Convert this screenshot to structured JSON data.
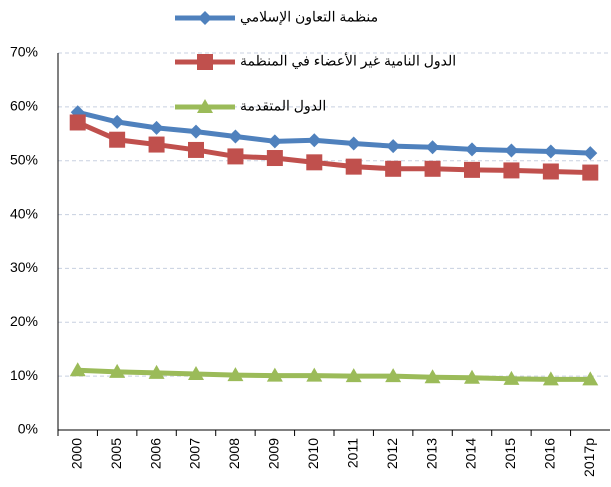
{
  "chart_data": {
    "type": "line",
    "categories": [
      "2000",
      "2005",
      "2006",
      "2007",
      "2008",
      "2009",
      "2010",
      "2011",
      "2012",
      "2013",
      "2014",
      "2015",
      "2016",
      "2017p"
    ],
    "series": [
      {
        "name": "منظمة التعاون الإسلامي",
        "color": "#4f81bd",
        "marker": "diamond",
        "values": [
          59,
          57.2,
          56.1,
          55.4,
          54.5,
          53.6,
          53.8,
          53.2,
          52.7,
          52.5,
          52.1,
          51.9,
          51.7,
          51.4
        ]
      },
      {
        "name": "الدول النامية غير الأعضاء في المنظمة",
        "color": "#c0504d",
        "marker": "square",
        "values": [
          57.1,
          53.9,
          53,
          52,
          50.8,
          50.5,
          49.7,
          48.9,
          48.5,
          48.5,
          48.3,
          48.2,
          48,
          47.8
        ]
      },
      {
        "name": "الدول المتقدمة",
        "color": "#9bbb59",
        "marker": "triangle",
        "values": [
          11.1,
          10.8,
          10.6,
          10.4,
          10.2,
          10.1,
          10.1,
          10,
          10,
          9.8,
          9.7,
          9.5,
          9.4,
          9.4
        ]
      }
    ],
    "ylim": [
      0,
      70
    ],
    "yticks": [
      {
        "value": 0,
        "label": "0%"
      },
      {
        "value": 10,
        "label": "10%"
      },
      {
        "value": 20,
        "label": "20%"
      },
      {
        "value": 30,
        "label": "30%"
      },
      {
        "value": 40,
        "label": "40%"
      },
      {
        "value": 50,
        "label": "50%"
      },
      {
        "value": 60,
        "label": "60%"
      },
      {
        "value": 70,
        "label": "70%"
      }
    ],
    "grid": true
  }
}
